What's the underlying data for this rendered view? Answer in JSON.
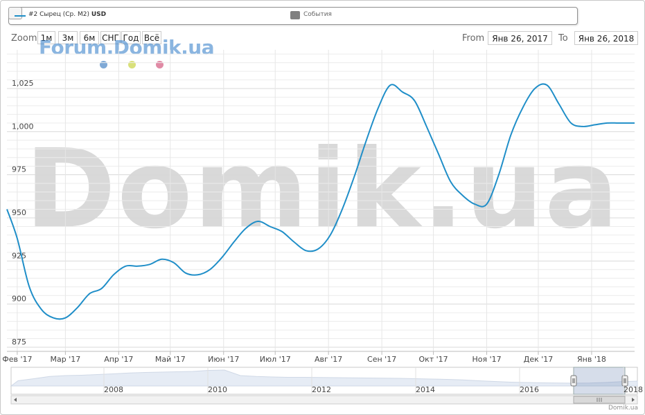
{
  "legend": {
    "series_label": "#2 Сырец (Ср. М2)",
    "series_unit": "USD",
    "events_label": "События"
  },
  "zoom": {
    "label": "Zoom",
    "buttons": [
      "1м",
      "3м",
      "6м",
      "СНГ",
      "Год",
      "Всё"
    ]
  },
  "range": {
    "from_label": "From",
    "from_value": "Янв 26, 2017",
    "to_label": "To",
    "to_value": "Янв 26, 2018"
  },
  "watermarks": {
    "forum": "Forum.Domik.ua",
    "big": "Domik.ua"
  },
  "credit": "Domik.ua",
  "colors": {
    "series": "#1f8ec8",
    "dot_blue": "#7fa9d6",
    "dot_green": "#d9e07a",
    "dot_pink": "#e08aa5"
  },
  "chart_data": {
    "type": "line",
    "ylim": [
      875,
      1050
    ],
    "yticks": [
      "875",
      "900",
      "925",
      "950",
      "975",
      "1,000",
      "1,025"
    ],
    "xticks": [
      "Фев '17",
      "Мар '17",
      "Апр '17",
      "Май '17",
      "Июн '17",
      "Июл '17",
      "Авг '17",
      "Сен '17",
      "Окт '17",
      "Ноя '17",
      "Дек '17",
      "Янв '18"
    ],
    "series": [
      {
        "x": [
          "2017-01-26",
          "2017-02-01",
          "2017-02-08",
          "2017-02-15",
          "2017-02-22",
          "2017-03-01",
          "2017-03-08",
          "2017-03-15",
          "2017-03-22",
          "2017-03-29",
          "2017-04-05",
          "2017-04-12",
          "2017-04-19",
          "2017-04-26",
          "2017-05-03",
          "2017-05-10",
          "2017-05-17",
          "2017-05-24",
          "2017-05-31",
          "2017-06-07",
          "2017-06-14",
          "2017-06-21",
          "2017-06-28",
          "2017-07-05",
          "2017-07-12",
          "2017-07-19",
          "2017-07-26",
          "2017-08-02",
          "2017-08-09",
          "2017-08-16",
          "2017-08-23",
          "2017-08-30",
          "2017-09-06",
          "2017-09-13",
          "2017-09-20",
          "2017-09-27",
          "2017-10-04",
          "2017-10-11",
          "2017-10-18",
          "2017-10-25",
          "2017-11-01",
          "2017-11-08",
          "2017-11-15",
          "2017-11-22",
          "2017-11-29",
          "2017-12-06",
          "2017-12-13",
          "2017-12-20",
          "2017-12-27",
          "2018-01-03",
          "2018-01-10",
          "2018-01-17",
          "2018-01-26"
        ],
        "values": [
          955,
          938,
          910,
          897,
          892,
          892,
          898,
          906,
          909,
          917,
          922,
          922,
          923,
          926,
          924,
          918,
          917,
          920,
          927,
          936,
          944,
          948,
          945,
          942,
          936,
          931,
          932,
          940,
          955,
          974,
          995,
          1014,
          1027,
          1023,
          1018,
          1003,
          987,
          971,
          963,
          958,
          958,
          975,
          998,
          1014,
          1025,
          1027,
          1016,
          1005,
          1003,
          1004,
          1005,
          1005,
          1005
        ]
      }
    ],
    "navigator": {
      "labels": [
        "2008",
        "2010",
        "2012",
        "2014",
        "2016",
        "2018"
      ]
    }
  }
}
